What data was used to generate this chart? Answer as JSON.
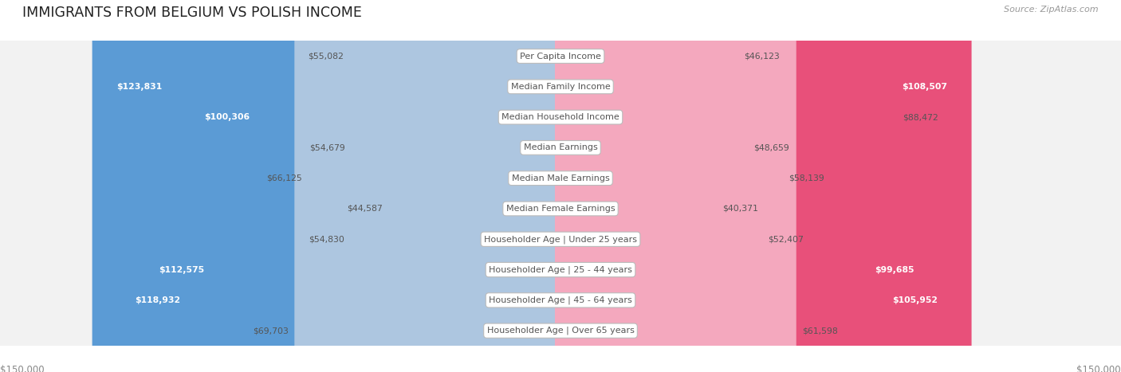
{
  "title": "IMMIGRANTS FROM BELGIUM VS POLISH INCOME",
  "source": "Source: ZipAtlas.com",
  "categories": [
    "Per Capita Income",
    "Median Family Income",
    "Median Household Income",
    "Median Earnings",
    "Median Male Earnings",
    "Median Female Earnings",
    "Householder Age | Under 25 years",
    "Householder Age | 25 - 44 years",
    "Householder Age | 45 - 64 years",
    "Householder Age | Over 65 years"
  ],
  "belgium_values": [
    55082,
    123831,
    100306,
    54679,
    66125,
    44587,
    54830,
    112575,
    118932,
    69703
  ],
  "polish_values": [
    46123,
    108507,
    88472,
    48659,
    58139,
    40371,
    52407,
    99685,
    105952,
    61598
  ],
  "max_value": 150000,
  "belgium_color_light": "#adc6e0",
  "belgium_color_dark": "#5b9bd5",
  "polish_color_light": "#f4a8be",
  "polish_color_dark": "#e8507a",
  "row_bg_color": "#f2f2f2",
  "row_border_color": "#cccccc",
  "center_label_bg": "#ffffff",
  "center_label_color": "#555555",
  "title_color": "#222222",
  "source_color": "#999999",
  "value_label_color": "#555555",
  "value_label_white": "#ffffff",
  "legend_belgium_color": "#7aafdb",
  "legend_polish_color": "#f47fab",
  "bottom_axis_color": "#888888",
  "threshold": 90000
}
